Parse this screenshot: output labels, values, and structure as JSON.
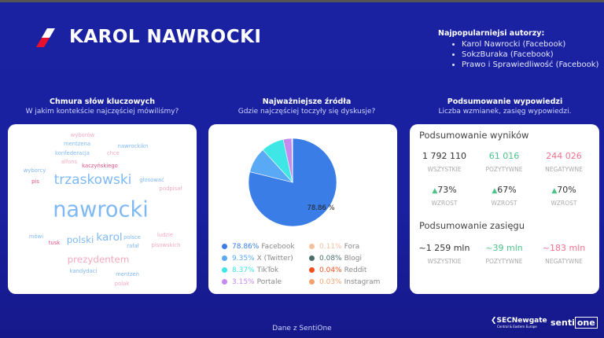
{
  "header": {
    "title": "KAROL NAWROCKI",
    "authors_title": "Najpopularniejsi autorzy:",
    "authors": [
      "Karol Nawrocki (Facebook)",
      "SokzBuraka (Facebook)",
      "Prawo i Sprawiedliwość (Facebook)"
    ]
  },
  "wordcloud": {
    "title": "Chmura słów kluczowych",
    "subtitle": "W jakim kontekście najczęściej mówiliśmy?",
    "words": [
      "wyborów",
      "mentzena",
      "nawrockikn",
      "konfederacja",
      "chce",
      "alfons",
      "kaczyńskiego",
      "wyborcy",
      "trzaskowski",
      "głosować",
      "pis",
      "podpisał",
      "nawrocki",
      "mówi",
      "polski",
      "karol",
      "polsce",
      "tusk",
      "rafał",
      "ludzie",
      "pisowskich",
      "prezydentem",
      "kandydaci",
      "mentzen",
      "polak"
    ]
  },
  "sources": {
    "title": "Najważniejsze źródła",
    "subtitle": "Gdzie najczęściej toczyły się dyskusje?",
    "pie_label": "78.86 %"
  },
  "chart_data": {
    "type": "pie",
    "slices": [
      {
        "name": "Facebook",
        "value": 78.86,
        "label": "78.86%",
        "color": "#3b7de6"
      },
      {
        "name": "X (Twitter)",
        "value": 9.35,
        "label": "9.35%",
        "color": "#5aa9f5"
      },
      {
        "name": "TikTok",
        "value": 8.37,
        "label": "8.37%",
        "color": "#3ee6e6"
      },
      {
        "name": "Portale",
        "value": 3.15,
        "label": "3.15%",
        "color": "#c58af0"
      },
      {
        "name": "Fora",
        "value": 0.11,
        "label": "0.11%",
        "color": "#f5c0a0"
      },
      {
        "name": "Blogi",
        "value": 0.08,
        "label": "0.08%",
        "color": "#4a6e6a"
      },
      {
        "name": "Reddit",
        "value": 0.04,
        "label": "0.04%",
        "color": "#f24e1e"
      },
      {
        "name": "Instagram",
        "value": 0.03,
        "label": "0.03%",
        "color": "#f5a070"
      }
    ]
  },
  "summary": {
    "title": "Podsumowanie wypowiedzi",
    "subtitle": "Liczba wzmianek, zasięg wypowiedzi.",
    "results_title": "Podsumowanie wyników",
    "results": [
      {
        "value": "1 792 110",
        "label": "WSZYSTKIE",
        "color": "#333333"
      },
      {
        "value": "61 016",
        "label": "POZYTYWNE",
        "color": "#4cc48a"
      },
      {
        "value": "244 026",
        "label": "NEGATYWNE",
        "color": "#f07090"
      }
    ],
    "growth": [
      {
        "value": "73%",
        "label": "WZROST"
      },
      {
        "value": "67%",
        "label": "WZROST"
      },
      {
        "value": "70%",
        "label": "WZROST"
      }
    ],
    "reach_title": "Podsumowanie zasięgu",
    "reach": [
      {
        "value": "~1 259 mln",
        "label": "WSZYSTKIE",
        "color": "#333333"
      },
      {
        "value": "~39 mln",
        "label": "POZYTYWNE",
        "color": "#4cc48a"
      },
      {
        "value": "~183 mln",
        "label": "NEGATYWNE",
        "color": "#f07090"
      }
    ]
  },
  "footer": {
    "text": "Dane z SentiOne",
    "logo1": "SECNewgate Central & Eastern Europe",
    "logo2": "sentione"
  }
}
